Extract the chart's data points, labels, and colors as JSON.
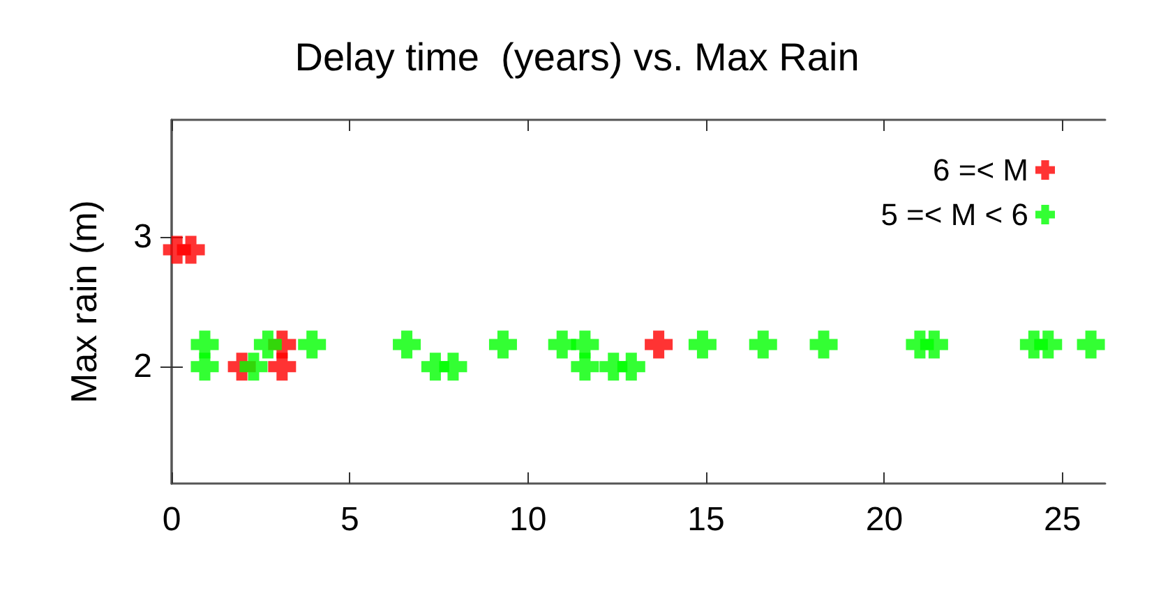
{
  "chart_data": {
    "type": "scatter",
    "title": "Delay time  (years) vs. Max Rain",
    "ylabel": "Max rain (m)",
    "xlim": [
      0,
      26.2
    ],
    "xticks": [
      0,
      5,
      10,
      15,
      20,
      25
    ],
    "ylim": [
      1.1,
      3.9
    ],
    "yticks": [
      2,
      3
    ],
    "marker": "cross",
    "grid": false,
    "legend": "top right",
    "series": [
      {
        "name": "6 =< M",
        "color": "#ff0000",
        "x": [
          0.15,
          0.54,
          1.97,
          3.1,
          3.1,
          13.67
        ],
        "values": [
          2.9,
          2.9,
          2.0,
          2.0,
          2.17,
          2.17
        ]
      },
      {
        "name": "5 =< M < 6",
        "color": "#00ff00",
        "x": [
          0.93,
          2.7,
          3.94,
          6.6,
          9.3,
          10.96,
          11.6,
          14.9,
          16.6,
          18.3,
          21.0,
          21.4,
          24.2,
          24.6,
          25.8,
          0.93,
          2.3,
          7.4,
          7.9,
          11.6,
          12.4,
          12.9
        ],
        "values": [
          2.17,
          2.17,
          2.17,
          2.17,
          2.17,
          2.17,
          2.17,
          2.17,
          2.17,
          2.17,
          2.17,
          2.17,
          2.17,
          2.17,
          2.17,
          2.0,
          2.0,
          2.0,
          2.0,
          2.0,
          2.0,
          2.0
        ]
      }
    ]
  }
}
